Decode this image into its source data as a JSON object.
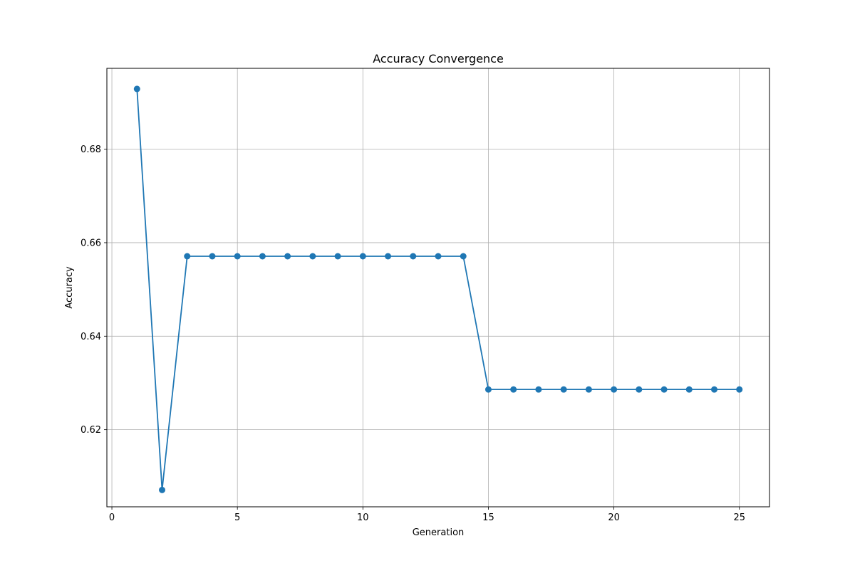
{
  "chart_data": {
    "type": "line",
    "title": "Accuracy Convergence",
    "xlabel": "Generation",
    "ylabel": "Accuracy",
    "xlim": [
      -0.2,
      26.2
    ],
    "ylim": [
      0.6035,
      0.6973
    ],
    "xticks": [
      0,
      5,
      10,
      15,
      20,
      25
    ],
    "yticks": [
      0.62,
      0.64,
      0.66,
      0.68
    ],
    "xtick_labels": [
      "0",
      "5",
      "10",
      "15",
      "20",
      "25"
    ],
    "ytick_labels": [
      "0.62",
      "0.64",
      "0.66",
      "0.68"
    ],
    "grid": true,
    "series": [
      {
        "color": "#1f77b4",
        "marker": "circle",
        "x": [
          1,
          2,
          3,
          4,
          5,
          6,
          7,
          8,
          9,
          10,
          11,
          12,
          13,
          14,
          15,
          16,
          17,
          18,
          19,
          20,
          21,
          22,
          23,
          24,
          25
        ],
        "y": [
          0.6929,
          0.6071,
          0.6571,
          0.6571,
          0.6571,
          0.6571,
          0.6571,
          0.6571,
          0.6571,
          0.6571,
          0.6571,
          0.6571,
          0.6571,
          0.6571,
          0.6286,
          0.6286,
          0.6286,
          0.6286,
          0.6286,
          0.6286,
          0.6286,
          0.6286,
          0.6286,
          0.6286,
          0.6286
        ]
      }
    ]
  }
}
